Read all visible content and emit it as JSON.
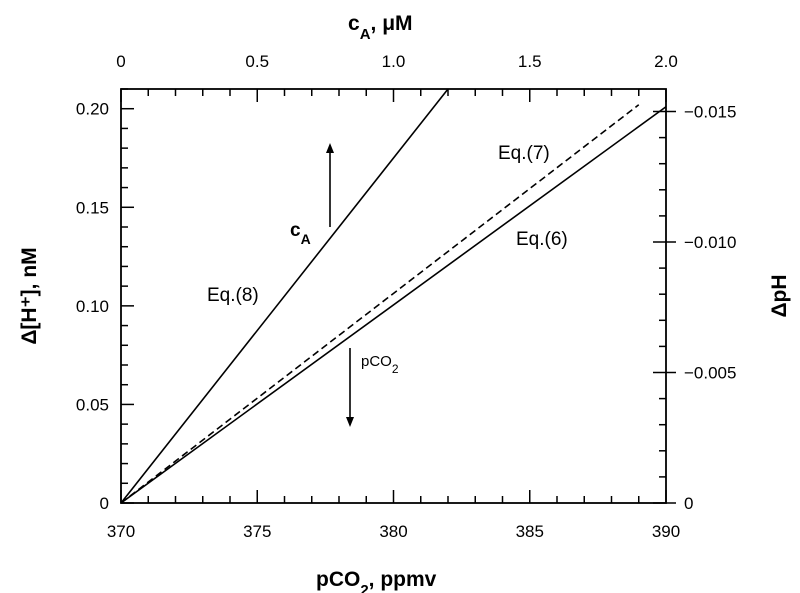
{
  "chart_data": {
    "type": "line",
    "x": {
      "label_main": "pCO",
      "label_sub": "2",
      "label_unit": ", ppmv",
      "lim": [
        370,
        390
      ],
      "ticks": [
        "370",
        "375",
        "380",
        "385",
        "390"
      ]
    },
    "x_top": {
      "label_main": "c",
      "label_sub": "A",
      "label_unit": ", μM",
      "lim": [
        0,
        2.0
      ],
      "ticks": [
        "0",
        "0.5",
        "1.0",
        "1.5",
        "2.0"
      ]
    },
    "y": {
      "label": "Δ[H⁺], nM",
      "lim": [
        0,
        0.21
      ],
      "ticks": [
        "0",
        "0.05",
        "0.10",
        "0.15",
        "0.20"
      ]
    },
    "y_right": {
      "label": "ΔpH",
      "ticks": [
        "0",
        "−0.005",
        "−0.010",
        "−0.015"
      ]
    },
    "series": [
      {
        "name": "Eq.(8)",
        "axis": "top",
        "style": "solid",
        "points": [
          [
            0,
            0
          ],
          [
            1.2,
            0.21
          ]
        ]
      },
      {
        "name": "Eq.(7)",
        "axis": "bottom",
        "style": "dashed",
        "points": [
          [
            370,
            0
          ],
          [
            389,
            0.202
          ]
        ]
      },
      {
        "name": "Eq.(6)",
        "axis": "bottom",
        "style": "solid",
        "points": [
          [
            370,
            0
          ],
          [
            390,
            0.201
          ]
        ]
      }
    ],
    "annotations": {
      "eq8": "Eq.(8)",
      "eq7": "Eq.(7)",
      "eq6": "Eq.(6)",
      "ca_main": "c",
      "ca_sub": "A",
      "pco2_main": "pCO",
      "pco2_sub": "2"
    },
    "grid": false
  }
}
